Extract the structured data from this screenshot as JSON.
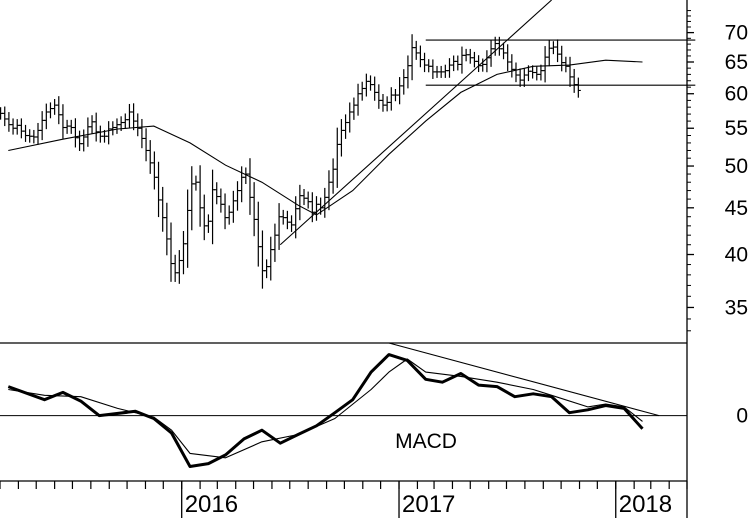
{
  "chart_data": [
    {
      "type": "line",
      "subtype": "ohlc-bar",
      "panel": "price",
      "y_scale": "log",
      "ylim": [
        32,
        76
      ],
      "y_ticks": [
        70,
        65,
        60,
        55,
        50,
        45,
        40,
        35
      ],
      "y_tick_labels": [
        "70",
        "65",
        "60",
        "55",
        "50",
        "45",
        "40",
        "35"
      ],
      "x_range": [
        "2015-03",
        "2018-05"
      ],
      "bars_weekly": {
        "start": "2015-03-02",
        "interval": "week",
        "close": [
          57.1,
          56.3,
          55.5,
          55.0,
          55.4,
          54.6,
          54.0,
          53.9,
          53.8,
          54.7,
          56.1,
          57.3,
          57.8,
          58.3,
          56.9,
          55.1,
          55.3,
          55.1,
          53.7,
          52.9,
          53.8,
          55.2,
          55.9,
          54.5,
          53.9,
          53.9,
          54.9,
          55.1,
          55.5,
          55.8,
          56.2,
          57.3,
          56.0,
          55.0,
          53.6,
          52.0,
          50.4,
          48.6,
          45.9,
          43.9,
          41.6,
          39.1,
          38.2,
          39.4,
          41.1,
          44.7,
          47.8,
          48.0,
          45.0,
          43.0,
          43.5,
          47.1,
          46.3,
          45.4,
          43.9,
          44.5,
          45.8,
          47.0,
          48.6,
          49.0,
          46.2,
          43.7,
          40.8,
          38.4,
          38.8,
          40.5,
          42.0,
          44.0,
          43.9,
          43.4,
          43.1,
          44.9,
          46.4,
          46.1,
          45.7,
          44.5,
          45.4,
          45.0,
          46.2,
          48.0,
          49.6,
          52.8,
          54.7,
          55.8,
          57.3,
          58.3,
          60.0,
          60.8,
          61.9,
          61.4,
          60.2,
          59.0,
          58.3,
          58.7,
          59.8,
          59.8,
          61.2,
          62.5,
          64.4,
          67.4,
          66.5,
          65.4,
          64.5,
          64.3,
          63.4,
          63.4,
          63.4,
          63.6,
          64.5,
          65.1,
          64.6,
          66.1,
          66.2,
          65.7,
          65.1,
          64.4,
          64.6,
          65.7,
          67.2,
          68.1,
          67.2,
          66.5,
          65.0,
          63.8,
          62.9,
          62.1,
          62.9,
          63.5,
          63.3,
          63.0,
          63.6,
          65.8,
          67.3,
          67.5,
          66.3,
          64.9,
          64.3,
          62.6,
          61.4,
          60.5
        ]
      },
      "series": [
        {
          "kind": "moving-average",
          "points": [
            [
              "2015-03",
              52.0
            ],
            [
              "2015-06",
              53.5
            ],
            [
              "2015-09",
              54.9
            ],
            [
              "2015-11",
              55.3
            ],
            [
              "2016-01",
              53.0
            ],
            [
              "2016-03",
              50.1
            ],
            [
              "2016-05",
              48.0
            ],
            [
              "2016-07",
              45.3
            ],
            [
              "2016-08",
              44.2
            ],
            [
              "2016-10",
              47.0
            ],
            [
              "2016-12",
              51.5
            ],
            [
              "2017-02",
              56.0
            ],
            [
              "2017-04",
              60.2
            ],
            [
              "2017-06",
              63.0
            ],
            [
              "2017-08",
              64.3
            ],
            [
              "2017-10",
              64.5
            ],
            [
              "2017-12",
              65.3
            ],
            [
              "2018-02",
              65.0
            ]
          ]
        }
      ],
      "trendlines": [
        {
          "from": [
            "2016-06",
            41.0
          ],
          "to": [
            "2017-09",
            76.0
          ]
        },
        {
          "from": [
            "2017-02",
            68.7
          ],
          "to": [
            "2018-05",
            68.7
          ]
        },
        {
          "from": [
            "2017-02",
            61.3
          ],
          "to": [
            "2018-05",
            61.3
          ]
        }
      ],
      "grid": false
    },
    {
      "type": "line",
      "panel": "macd",
      "title": "MACD",
      "ylim": [
        -4.5,
        5.0
      ],
      "y_ticks": [
        0
      ],
      "y_tick_labels": [
        "0"
      ],
      "series": [
        {
          "kind": "macd",
          "points": [
            [
              "2015-03",
              2.0
            ],
            [
              "2015-05",
              1.1
            ],
            [
              "2015-06",
              1.6
            ],
            [
              "2015-07",
              1.0
            ],
            [
              "2015-08",
              0.0
            ],
            [
              "2015-10",
              0.3
            ],
            [
              "2015-11",
              -0.2
            ],
            [
              "2015-12",
              -1.2
            ],
            [
              "2016-01",
              -3.5
            ],
            [
              "2016-02",
              -3.3
            ],
            [
              "2016-03",
              -2.7
            ],
            [
              "2016-04",
              -1.6
            ],
            [
              "2016-05",
              -1.0
            ],
            [
              "2016-06",
              -1.9
            ],
            [
              "2016-07",
              -1.3
            ],
            [
              "2016-08",
              -0.7
            ],
            [
              "2016-09",
              0.2
            ],
            [
              "2016-10",
              1.1
            ],
            [
              "2016-11",
              3.0
            ],
            [
              "2016-12",
              4.2
            ],
            [
              "2017-01",
              3.8
            ],
            [
              "2017-02",
              2.5
            ],
            [
              "2017-03",
              2.3
            ],
            [
              "2017-04",
              2.9
            ],
            [
              "2017-05",
              2.1
            ],
            [
              "2017-06",
              2.0
            ],
            [
              "2017-07",
              1.3
            ],
            [
              "2017-08",
              1.5
            ],
            [
              "2017-09",
              1.3
            ],
            [
              "2017-10",
              0.2
            ],
            [
              "2017-11",
              0.4
            ],
            [
              "2017-12",
              0.7
            ],
            [
              "2018-01",
              0.5
            ],
            [
              "2018-02",
              -0.9
            ]
          ]
        },
        {
          "kind": "signal",
          "points": [
            [
              "2015-03",
              1.8
            ],
            [
              "2015-05",
              1.4
            ],
            [
              "2015-07",
              1.3
            ],
            [
              "2015-09",
              0.5
            ],
            [
              "2015-11",
              -0.1
            ],
            [
              "2015-12",
              -1.0
            ],
            [
              "2016-01",
              -2.6
            ],
            [
              "2016-03",
              -2.9
            ],
            [
              "2016-05",
              -1.8
            ],
            [
              "2016-07",
              -1.3
            ],
            [
              "2016-09",
              -0.2
            ],
            [
              "2016-11",
              1.8
            ],
            [
              "2016-12",
              3.0
            ],
            [
              "2017-01",
              3.9
            ],
            [
              "2017-02",
              3.0
            ],
            [
              "2017-04",
              2.7
            ],
            [
              "2017-06",
              2.3
            ],
            [
              "2017-08",
              1.8
            ],
            [
              "2017-09",
              1.4
            ],
            [
              "2017-11",
              0.6
            ],
            [
              "2017-12",
              0.8
            ],
            [
              "2018-01",
              0.6
            ],
            [
              "2018-02",
              -0.4
            ]
          ]
        }
      ],
      "trendlines": [
        {
          "from": [
            "2016-12",
            5.0
          ],
          "to": [
            "2018-03",
            0.0
          ]
        }
      ]
    }
  ],
  "x_axis": {
    "years": [
      {
        "label": "2016",
        "date": "2016-01"
      },
      {
        "label": "2017",
        "date": "2017-01"
      },
      {
        "label": "2018",
        "date": "2018-01"
      }
    ]
  }
}
